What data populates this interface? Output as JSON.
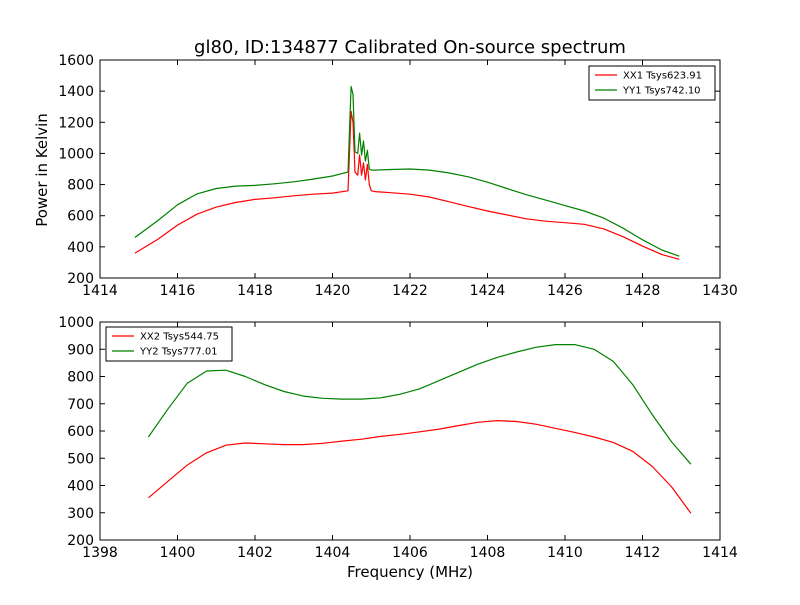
{
  "chart_data": [
    {
      "type": "line",
      "title": "gl80, ID:134877 Calibrated On-source spectrum",
      "xlabel": "",
      "ylabel": "Power in Kelvin",
      "xlim": [
        1414,
        1430
      ],
      "ylim": [
        200,
        1600
      ],
      "xticks": [
        1414,
        1416,
        1418,
        1420,
        1422,
        1424,
        1426,
        1428,
        1430
      ],
      "yticks": [
        200,
        400,
        600,
        800,
        1000,
        1200,
        1400,
        1600
      ],
      "legend_position": "top-right",
      "series": [
        {
          "name": "XX1 Tsys623.91",
          "color": "#ff0000",
          "x": [
            1414.9,
            1415.5,
            1416.0,
            1416.5,
            1417.0,
            1417.5,
            1418.0,
            1418.5,
            1419.0,
            1419.5,
            1420.0,
            1420.4,
            1420.48,
            1420.53,
            1420.58,
            1420.65,
            1420.7,
            1420.75,
            1420.8,
            1420.85,
            1420.9,
            1420.95,
            1421.0,
            1421.1,
            1421.5,
            1422.0,
            1422.5,
            1423.0,
            1423.5,
            1424.0,
            1424.5,
            1425.0,
            1425.5,
            1426.0,
            1426.5,
            1427.0,
            1427.5,
            1428.0,
            1428.5,
            1428.95
          ],
          "values": [
            360,
            450,
            540,
            610,
            655,
            685,
            705,
            715,
            728,
            738,
            745,
            760,
            1270,
            1200,
            880,
            860,
            990,
            860,
            940,
            830,
            930,
            800,
            760,
            755,
            748,
            738,
            720,
            690,
            660,
            630,
            605,
            580,
            565,
            555,
            545,
            515,
            465,
            405,
            350,
            320
          ]
        },
        {
          "name": "YY1 Tsys742.10",
          "color": "#008000",
          "x": [
            1414.9,
            1415.5,
            1416.0,
            1416.5,
            1417.0,
            1417.5,
            1418.0,
            1418.5,
            1419.0,
            1419.5,
            1420.0,
            1420.4,
            1420.48,
            1420.53,
            1420.58,
            1420.65,
            1420.7,
            1420.75,
            1420.8,
            1420.85,
            1420.9,
            1420.95,
            1421.0,
            1421.1,
            1421.5,
            1422.0,
            1422.5,
            1423.0,
            1423.5,
            1424.0,
            1424.5,
            1425.0,
            1425.5,
            1426.0,
            1426.5,
            1427.0,
            1427.5,
            1428.0,
            1428.5,
            1428.95
          ],
          "values": [
            460,
            570,
            670,
            740,
            775,
            790,
            795,
            805,
            818,
            835,
            855,
            880,
            1430,
            1380,
            1010,
            1000,
            1130,
            990,
            1080,
            950,
            1020,
            900,
            893,
            893,
            897,
            900,
            893,
            875,
            850,
            815,
            775,
            735,
            700,
            665,
            630,
            585,
            520,
            445,
            380,
            340
          ]
        }
      ]
    },
    {
      "type": "line",
      "title": "",
      "xlabel": "Frequency (MHz)",
      "ylabel": "",
      "xlim": [
        1398,
        1414
      ],
      "ylim": [
        200,
        1000
      ],
      "xticks": [
        1398,
        1400,
        1402,
        1404,
        1406,
        1408,
        1410,
        1412,
        1414
      ],
      "yticks": [
        200,
        300,
        400,
        500,
        600,
        700,
        800,
        900,
        1000
      ],
      "legend_position": "top-left",
      "series": [
        {
          "name": "XX2 Tsys544.75",
          "color": "#ff0000",
          "x": [
            1399.25,
            1399.75,
            1400.25,
            1400.75,
            1401.25,
            1401.75,
            1402.25,
            1402.75,
            1403.25,
            1403.75,
            1404.25,
            1404.75,
            1405.25,
            1405.75,
            1406.25,
            1406.75,
            1407.25,
            1407.75,
            1408.25,
            1408.75,
            1409.25,
            1409.75,
            1410.25,
            1410.75,
            1411.25,
            1411.75,
            1412.25,
            1412.75,
            1413.25
          ],
          "values": [
            355,
            415,
            475,
            520,
            548,
            556,
            553,
            550,
            550,
            555,
            563,
            570,
            580,
            588,
            597,
            607,
            620,
            632,
            638,
            635,
            625,
            610,
            595,
            578,
            558,
            525,
            470,
            395,
            298
          ]
        },
        {
          "name": "YY2 Tsys777.01",
          "color": "#008000",
          "x": [
            1399.25,
            1399.75,
            1400.25,
            1400.75,
            1401.25,
            1401.75,
            1402.25,
            1402.75,
            1403.25,
            1403.75,
            1404.25,
            1404.75,
            1405.25,
            1405.75,
            1406.25,
            1406.75,
            1407.25,
            1407.75,
            1408.25,
            1408.75,
            1409.25,
            1409.75,
            1410.25,
            1410.75,
            1411.25,
            1411.75,
            1412.25,
            1412.75,
            1413.25
          ],
          "values": [
            578,
            680,
            775,
            820,
            823,
            800,
            770,
            745,
            728,
            720,
            717,
            717,
            722,
            735,
            755,
            785,
            815,
            845,
            870,
            890,
            907,
            917,
            917,
            900,
            855,
            770,
            660,
            560,
            478
          ]
        }
      ]
    }
  ]
}
